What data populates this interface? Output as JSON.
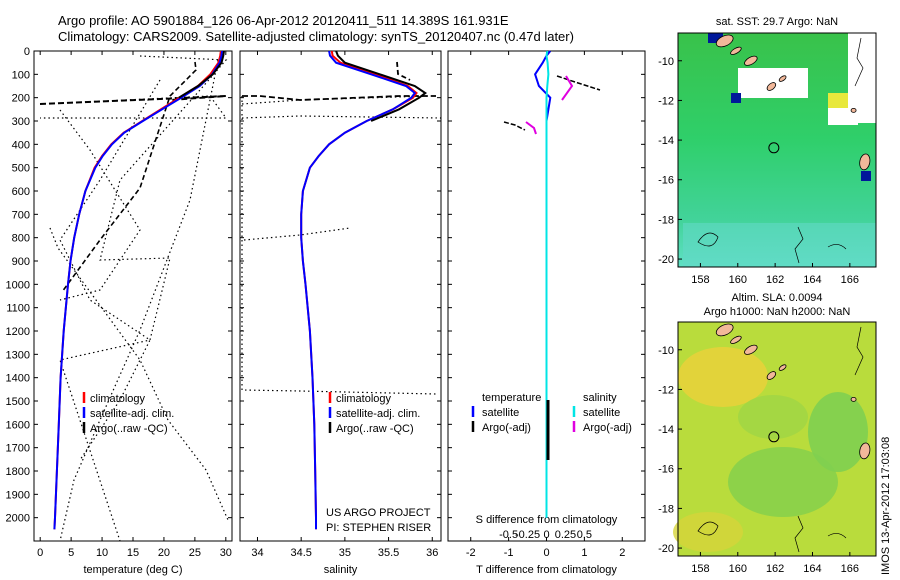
{
  "header": {
    "line1": "Argo profile: AO 5901884_126 06-Apr-2012 20120411_511 14.389S 161.931E",
    "line2": "Climatology: CARS2009. Satellite-adjusted climatology: synTS_20120407.nc (0.47d later)"
  },
  "credit": "IMOS 13-Apr-2012 17:03:08",
  "colors": {
    "climatology": "#ff0000",
    "satellite": "#0000ff",
    "argo": "#000000",
    "salinity_sat": "#00e5e5",
    "salinity_argo": "#e000e0",
    "land": "#f2b89a"
  },
  "chart_data": [
    {
      "id": "temperature",
      "type": "line",
      "xlabel": "temperature (deg C)",
      "ylim": [
        2100,
        0
      ],
      "yticks": [
        0,
        100,
        200,
        300,
        400,
        500,
        600,
        700,
        800,
        900,
        1000,
        1100,
        1200,
        1300,
        1400,
        1500,
        1600,
        1700,
        1800,
        1900,
        2000
      ],
      "xlim": [
        -1,
        31
      ],
      "xticks": [
        0,
        5,
        10,
        15,
        20,
        25,
        30
      ],
      "legend": [
        "climatology",
        "satellite-adj. clim.",
        "Argo(..raw -QC)"
      ],
      "depth": [
        0,
        20,
        50,
        100,
        150,
        200,
        250,
        300,
        350,
        400,
        450,
        500,
        600,
        700,
        800,
        900,
        1000,
        1200,
        1400,
        1600,
        1800,
        2000,
        2050
      ],
      "series": [
        {
          "name": "climatology",
          "values": [
            29.2,
            29.1,
            28.8,
            27.5,
            25.5,
            22.5,
            19.5,
            16.5,
            13.5,
            11.5,
            10.0,
            8.8,
            7.3,
            6.3,
            5.5,
            4.9,
            4.5,
            3.8,
            3.3,
            3.0,
            2.7,
            2.4,
            2.3
          ]
        },
        {
          "name": "satellite-adj. clim.",
          "values": [
            29.4,
            29.3,
            29.0,
            27.8,
            25.8,
            22.8,
            19.7,
            16.6,
            13.6,
            11.6,
            10.1,
            8.9,
            7.3,
            6.3,
            5.5,
            4.9,
            4.5,
            3.8,
            3.3,
            3.0,
            2.7,
            2.4,
            2.3
          ]
        },
        {
          "name": "Argo(..raw -QC)",
          "values": [
            29.7,
            29.6,
            29.3,
            27.9,
            25.5,
            22.4,
            null,
            null,
            null,
            null,
            null,
            null,
            null,
            null,
            null,
            null,
            null,
            null,
            null,
            null,
            null,
            null,
            null
          ]
        }
      ]
    },
    {
      "id": "salinity",
      "type": "line",
      "xlabel": "salinity",
      "ylim": [
        2100,
        0
      ],
      "xlim": [
        33.8,
        36.1
      ],
      "xticks": [
        34,
        34.5,
        35,
        35.5,
        36
      ],
      "legend": [
        "climatology",
        "satellite-adj. clim.",
        "Argo(..raw -QC)"
      ],
      "annotation": [
        "US ARGO PROJECT",
        "PI: STEPHEN RISER"
      ],
      "depth": [
        0,
        20,
        50,
        100,
        150,
        180,
        200,
        250,
        300,
        350,
        400,
        450,
        500,
        600,
        700,
        800,
        900,
        1000,
        1200,
        1400,
        1600,
        1800,
        2000,
        2050
      ],
      "series": [
        {
          "name": "climatology",
          "values": [
            34.85,
            34.86,
            34.95,
            35.35,
            35.72,
            35.82,
            35.78,
            35.55,
            35.25,
            35.0,
            34.82,
            34.7,
            34.6,
            34.52,
            34.5,
            34.5,
            34.52,
            34.55,
            34.6,
            34.63,
            34.65,
            34.66,
            34.67,
            34.67
          ]
        },
        {
          "name": "satellite-adj. clim.",
          "values": [
            34.82,
            34.83,
            34.9,
            35.3,
            35.7,
            35.8,
            35.76,
            35.55,
            35.25,
            35.0,
            34.82,
            34.7,
            34.6,
            34.52,
            34.5,
            34.5,
            34.52,
            34.55,
            34.6,
            34.63,
            34.65,
            34.66,
            34.67,
            34.67
          ]
        },
        {
          "name": "Argo(..raw -QC)",
          "values": [
            34.9,
            34.92,
            35.0,
            35.4,
            35.8,
            35.92,
            35.85,
            35.62,
            35.3,
            null,
            null,
            null,
            null,
            null,
            null,
            null,
            null,
            null,
            null,
            null,
            null,
            null,
            null,
            null
          ]
        }
      ]
    },
    {
      "id": "difference",
      "type": "line",
      "xlabel": "T difference from climatology",
      "xlabel2": "S difference from climatology",
      "ylim": [
        2100,
        0
      ],
      "xlim": [
        -2.6,
        2.6
      ],
      "xticks": [
        -2,
        -1,
        0,
        1,
        2
      ],
      "s_ticks": [
        "-0.5",
        "-0.25",
        "0",
        "0.25",
        "0.5"
      ],
      "legend": {
        "temperature_title": "temperature",
        "salinity_title": "salinity",
        "t_satellite": "satellite",
        "t_argo": "Argo(-adj)",
        "s_satellite": "satellite",
        "s_argo": "Argo(-adj)"
      },
      "depth": [
        0,
        20,
        50,
        100,
        150,
        200,
        250,
        300,
        400,
        600,
        1000,
        2000
      ],
      "series": [
        {
          "name": "T satellite",
          "values": [
            0.1,
            0.0,
            -0.1,
            -0.3,
            -0.2,
            0.1,
            0.05,
            0.0,
            0.0,
            0.0,
            0.0,
            0.0
          ]
        },
        {
          "name": "T Argo(-adj)",
          "values": [
            null,
            null,
            null,
            0.6,
            0.8,
            null,
            null,
            null,
            null,
            null,
            null,
            null
          ]
        },
        {
          "name": "S satellite",
          "values": [
            0.02,
            0.0,
            0.03,
            0.05,
            0.02,
            0.0,
            0.0,
            0.0,
            0.0,
            0.0,
            0.0,
            0.0
          ]
        },
        {
          "name": "S Argo(-adj)",
          "values": [
            null,
            null,
            null,
            0.9,
            0.7,
            null,
            null,
            null,
            null,
            null,
            null,
            null
          ]
        }
      ]
    },
    {
      "id": "sst_map",
      "type": "heatmap",
      "title": "sat. SST: 29.7  Argo: NaN",
      "xticks": [
        158,
        160,
        162,
        164,
        166
      ],
      "yticks": [
        -10,
        -12,
        -14,
        -16,
        -18,
        -20
      ],
      "xlim": [
        156.8,
        167.4
      ],
      "ylim": [
        -20.4,
        -8.6
      ],
      "float_position": [
        161.931,
        -14.389
      ]
    },
    {
      "id": "sla_map",
      "type": "heatmap",
      "title_line1": "Altim. SLA: 0.0094",
      "title_line2": "Argo h1000: NaN h2000: NaN",
      "xticks": [
        158,
        160,
        162,
        164,
        166
      ],
      "yticks": [
        -10,
        -12,
        -14,
        -16,
        -18,
        -20
      ],
      "xlim": [
        156.8,
        167.4
      ],
      "ylim": [
        -20.4,
        -8.6
      ],
      "float_position": [
        161.931,
        -14.389
      ]
    }
  ]
}
